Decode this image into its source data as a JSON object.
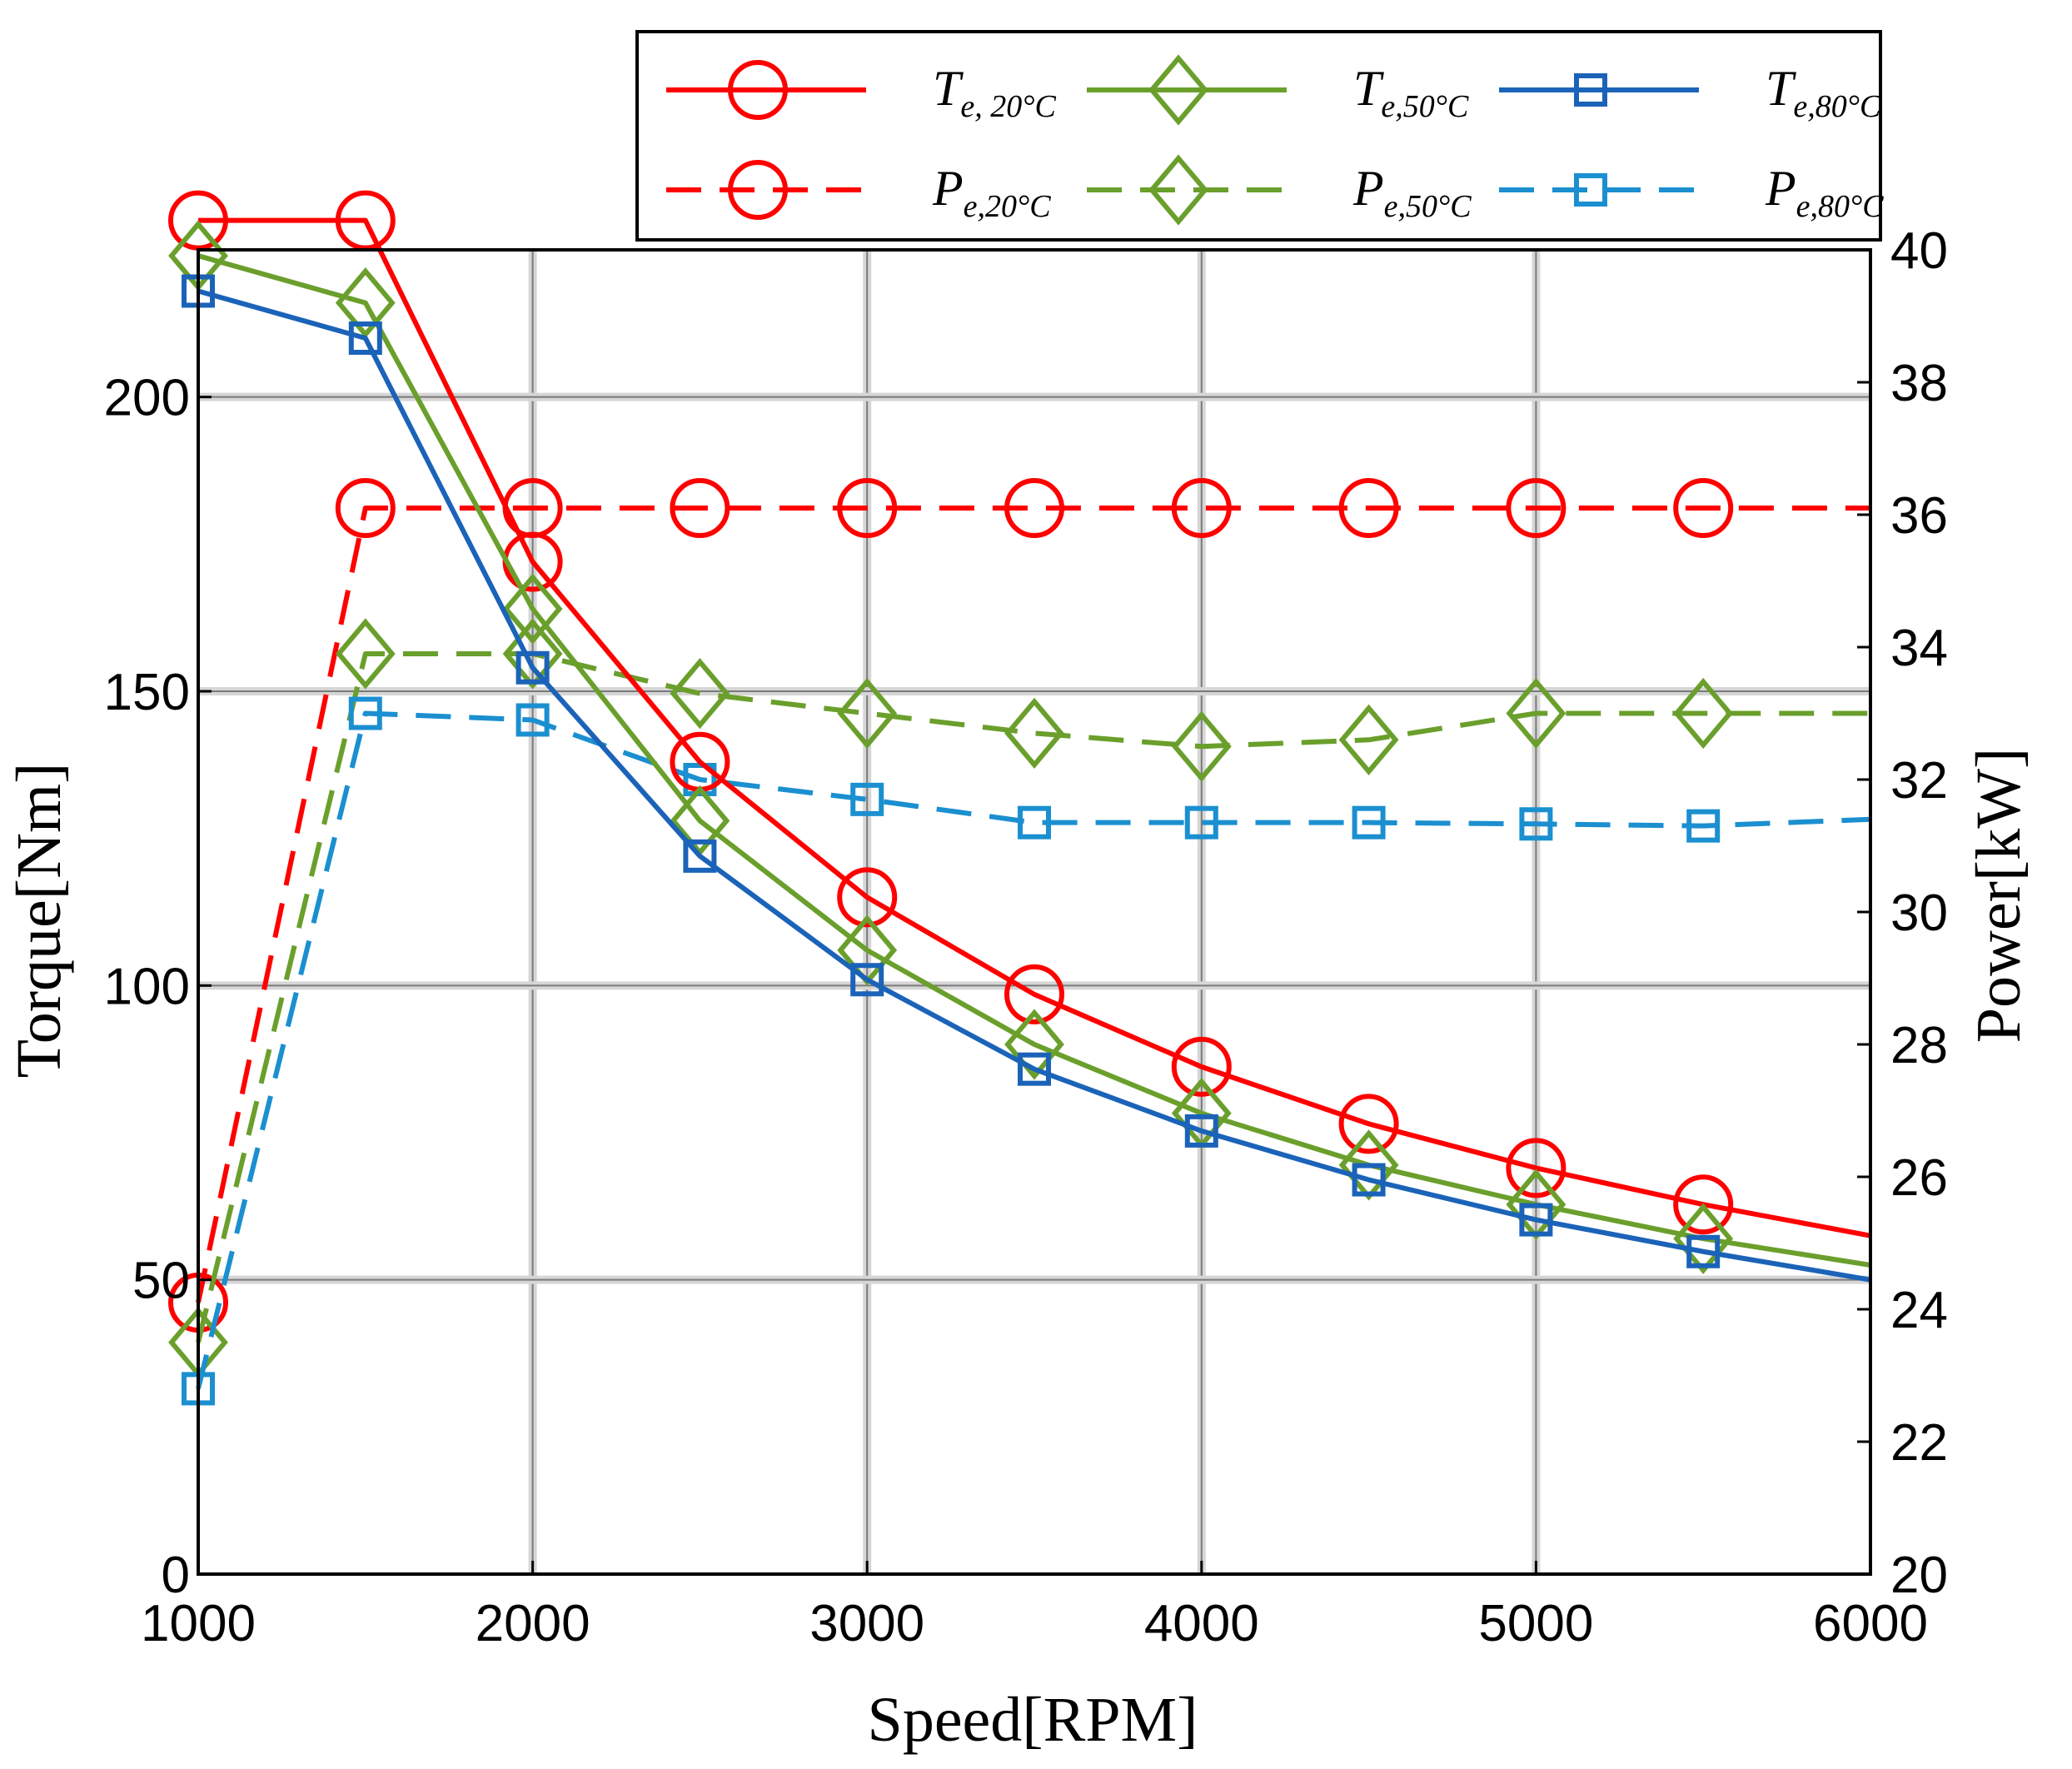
{
  "chart_data": {
    "type": "line",
    "xlabel": "Speed[RPM]",
    "ylabel": "Torque[Nm]",
    "y2label": "Power[kW]",
    "xlim": [
      1000,
      6000
    ],
    "ylim": [
      0,
      225
    ],
    "y2lim": [
      20,
      40
    ],
    "xticks": [
      1000,
      2000,
      3000,
      4000,
      5000,
      6000
    ],
    "yticks": [
      0,
      50,
      100,
      150,
      200
    ],
    "y2ticks": [
      20,
      22,
      24,
      26,
      28,
      30,
      32,
      34,
      36,
      38,
      40
    ],
    "grid": true,
    "legend_position": "top",
    "x": [
      1000,
      1500,
      2000,
      2500,
      3000,
      3500,
      4000,
      4500,
      5000,
      5500,
      6000
    ],
    "series": [
      {
        "name": "T_e,20°C",
        "label_main": "T",
        "label_sub": "e, 20°C",
        "axis": "left",
        "style": "solid",
        "marker": "circle",
        "color": "#ff0000",
        "values": [
          230,
          230,
          172,
          138,
          115,
          98.5,
          86.2,
          76.5,
          69,
          62.8,
          57.5
        ]
      },
      {
        "name": "T_e,50°C",
        "label_main": "T",
        "label_sub": "e,50°C",
        "axis": "left",
        "style": "solid",
        "marker": "diamond",
        "color": "#6a9f2c",
        "values": [
          224,
          216,
          164,
          128,
          106,
          90,
          78.3,
          69.5,
          62.8,
          57,
          52.5
        ]
      },
      {
        "name": "T_e,80°C",
        "label_main": "T",
        "label_sub": "e,80°C",
        "axis": "left",
        "style": "solid",
        "marker": "square",
        "color": "#1b63b8",
        "values": [
          218,
          210,
          154,
          122,
          101,
          85.8,
          75.3,
          67,
          60.2,
          54.8,
          50
        ]
      },
      {
        "name": "P_e,20°C",
        "label_main": "P",
        "label_sub": "e,20°C",
        "axis": "right",
        "style": "dashed",
        "marker": "circle",
        "color": "#ff0000",
        "values": [
          24.1,
          36.1,
          36.1,
          36.1,
          36.1,
          36.1,
          36.1,
          36.1,
          36.1,
          36.1,
          36.1
        ]
      },
      {
        "name": "P_e,50°C",
        "label_main": "P",
        "label_sub": "e,50°C",
        "axis": "right",
        "style": "dashed",
        "marker": "diamond",
        "color": "#6a9f2c",
        "values": [
          23.5,
          33.9,
          33.9,
          33.3,
          33.0,
          32.7,
          32.5,
          32.6,
          33.0,
          33.0,
          33.0
        ]
      },
      {
        "name": "P_e,80°C",
        "label_main": "P",
        "label_sub": "e,80°C",
        "axis": "right",
        "style": "dashed",
        "marker": "square",
        "color": "#1b8fd0",
        "values": [
          22.8,
          33.0,
          32.9,
          32.0,
          31.7,
          31.35,
          31.35,
          31.35,
          31.33,
          31.3,
          31.4
        ]
      }
    ]
  }
}
